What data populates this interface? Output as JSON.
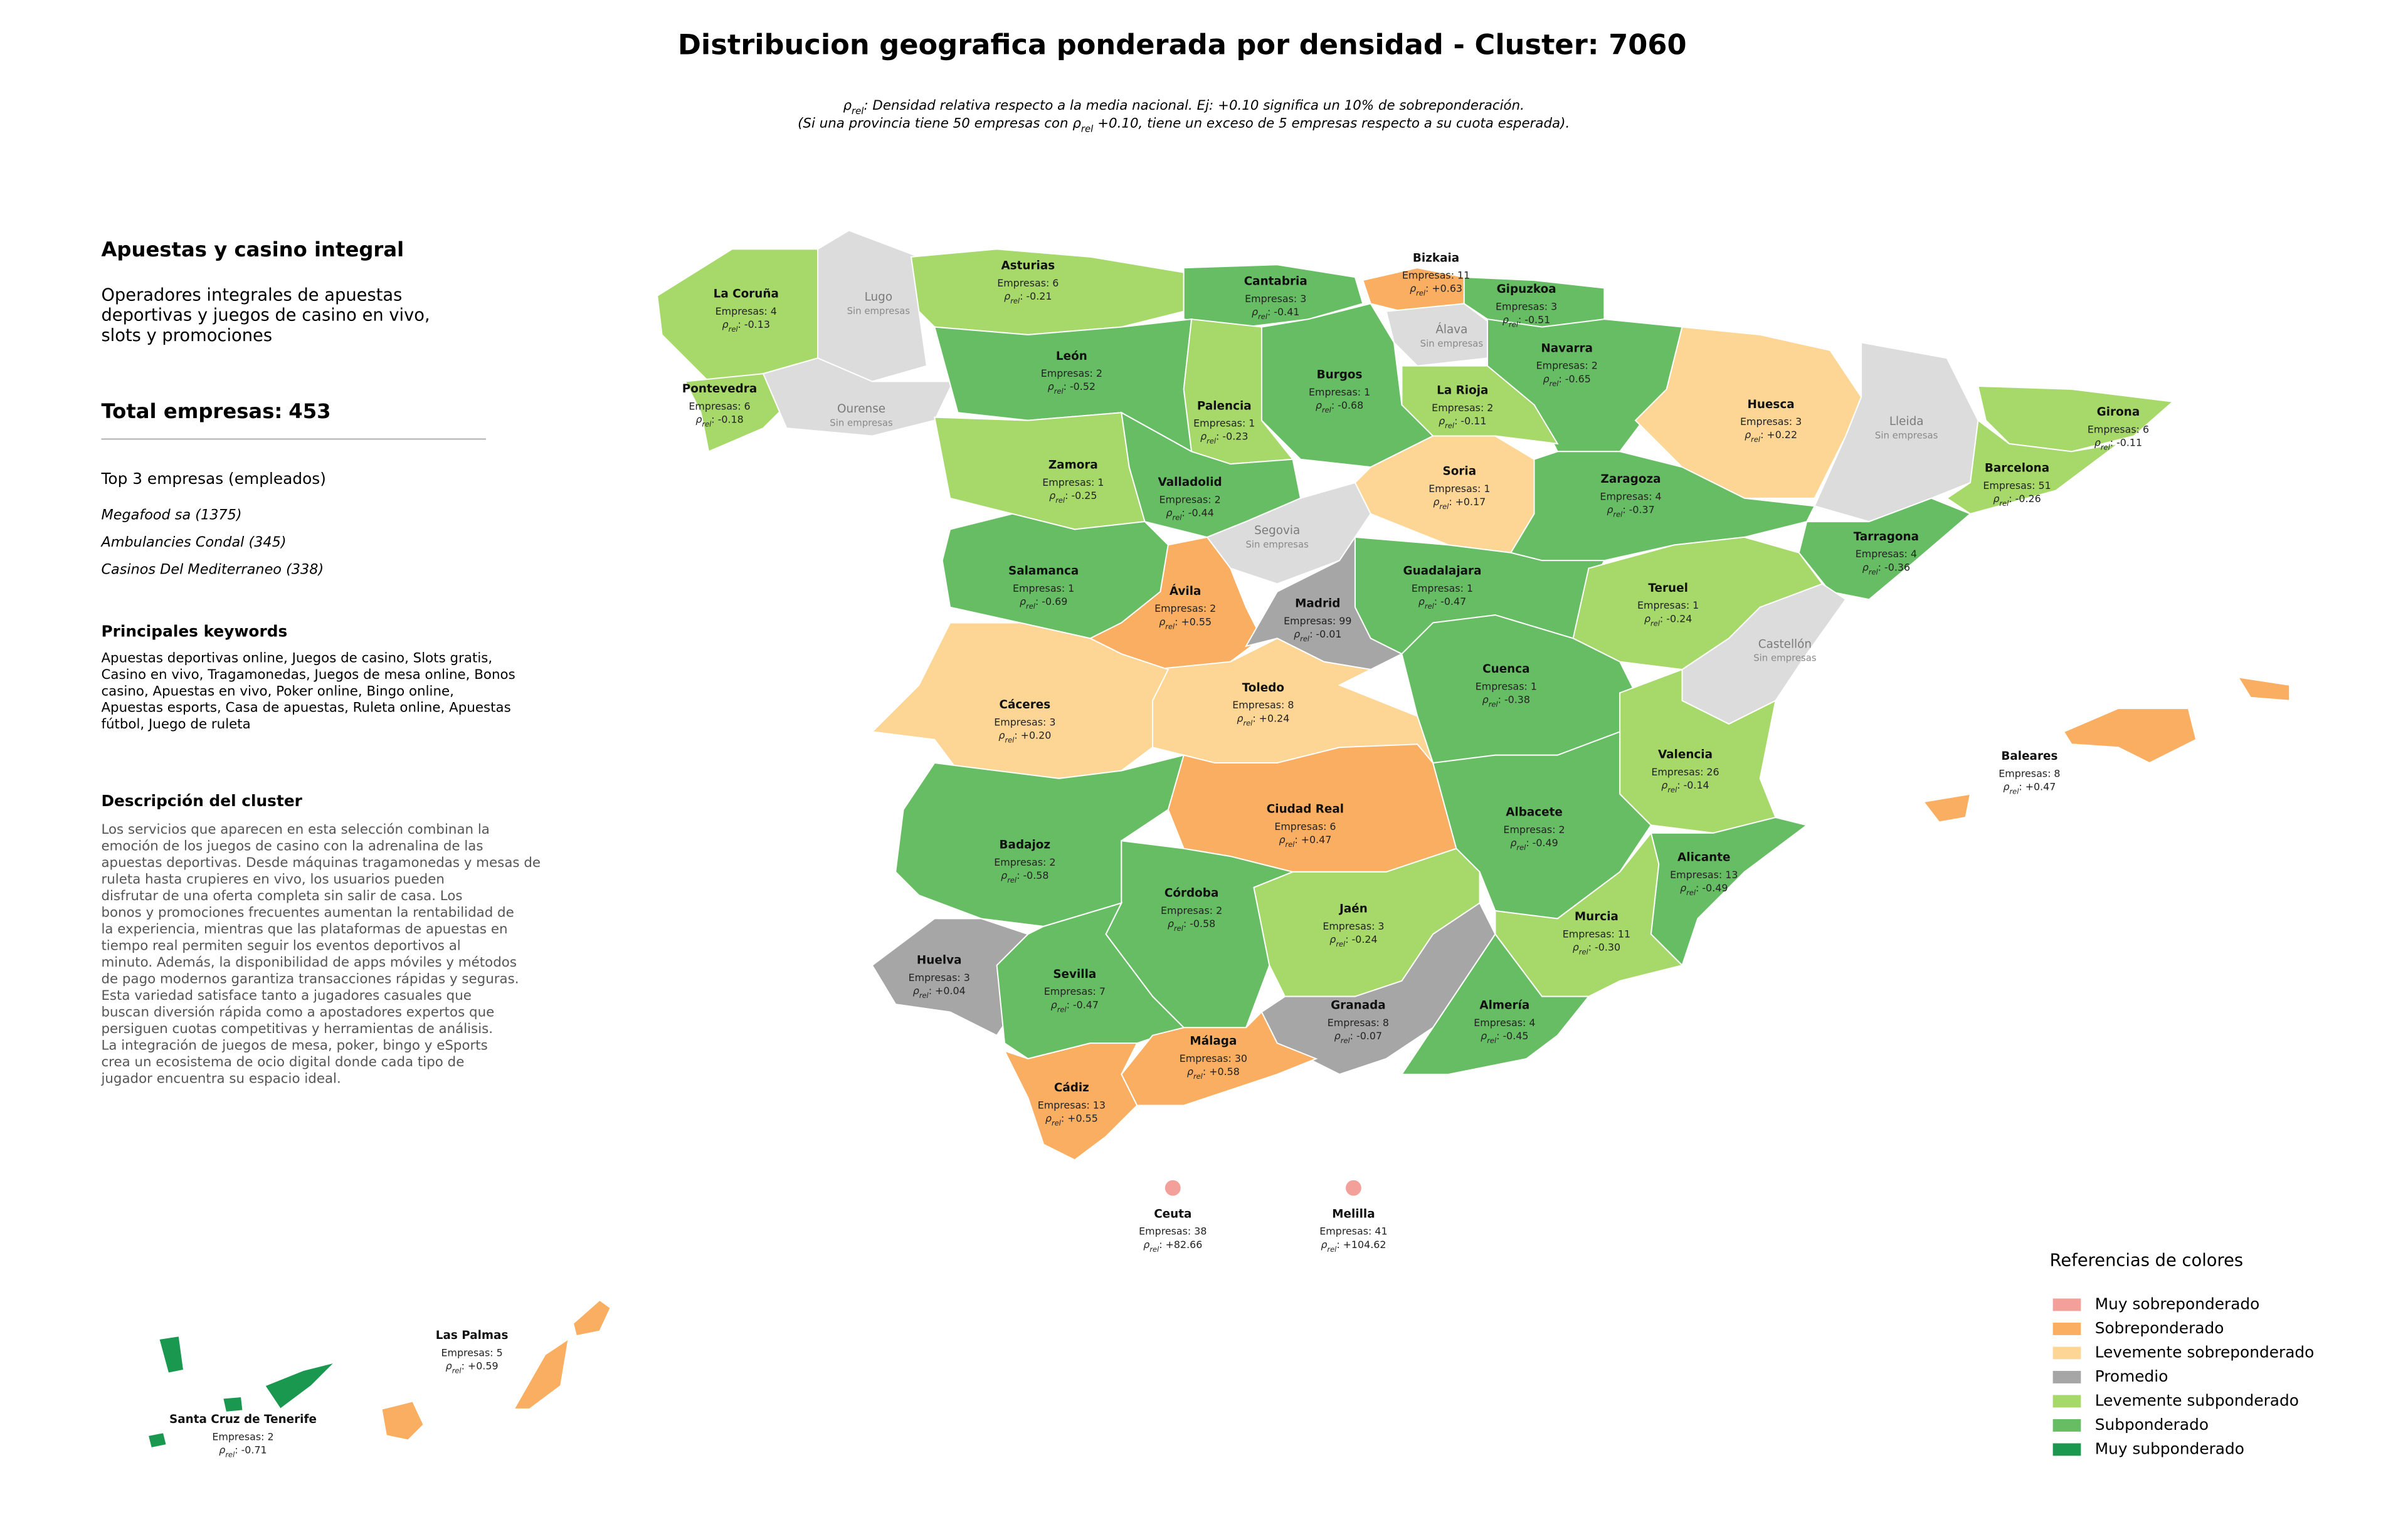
{
  "title": "Distribucion geografica ponderada por densidad - Cluster: 7060",
  "note_lines": [
    [
      "ρ",
      "rel",
      ": Densidad relativa respecto a la media nacional. Ej: +0.10 significa un 10% de sobreponderación."
    ],
    [
      "(Si una provincia tiene 50 empresas con ρ",
      "rel",
      " +0.10, tiene un exceso de 5 empresas respecto a su cuota esperada)."
    ]
  ],
  "panel": {
    "cluster_name": "Apuestas y casino integral",
    "cluster_summary": [
      "Operadores integrales de apuestas",
      "deportivas y juegos de casino en vivo,",
      "slots y promociones"
    ],
    "total_label": "Total empresas:",
    "total": 453,
    "top_title": "Top 3 empresas (empleados)",
    "top_companies": [
      "Megafood sa (1375)",
      "Ambulancies Condal (345)",
      "Casinos Del Mediterraneo (338)"
    ],
    "keywords_title": "Principales keywords",
    "keywords_lines": [
      "Apuestas deportivas online, Juegos de casino, Slots gratis,",
      "Casino en vivo, Tragamonedas, Juegos de mesa online, Bonos",
      "casino, Apuestas en vivo, Poker online, Bingo online,",
      "Apuestas esports, Casa de apuestas, Ruleta online, Apuestas",
      "fútbol, Juego de ruleta"
    ],
    "description_title": "Descripción del cluster",
    "description_lines": [
      "Los servicios que aparecen en esta selección combinan la",
      "emoción de los juegos de casino con la adrenalina de las",
      "apuestas deportivas. Desde máquinas tragamonedas y mesas de",
      "ruleta hasta crupieres en vivo, los usuarios pueden",
      "disfrutar de una oferta completa sin salir de casa. Los",
      "bonos y promociones frecuentes aumentan la rentabilidad de",
      "la experiencia, mientras que las plataformas de apuestas en",
      "tiempo real permiten seguir los eventos deportivos al",
      "minuto. Además, la disponibilidad de apps móviles y métodos",
      "de pago modernos garantiza transacciones rápidas y seguras.",
      "Esta variedad satisface tanto a jugadores casuales que",
      "buscan diversión rápida como a apostadores expertos que",
      "persiguen cuotas competitivas y herramientas de análisis.",
      "La integración de juegos de mesa, poker, bingo y eSports",
      "crea un ecosistema de ocio digital donde cada tipo de",
      "jugador encuentra su espacio ideal."
    ]
  },
  "map": {
    "empresas_prefix": "Empresas:",
    "rho_symbol": "ρ",
    "rho_sub": "rel",
    "rho_sep": ":",
    "no_data_label": "Sin empresas",
    "no_data_color": "#dcdcdc",
    "legend_title": "Referencias de colores",
    "legend": [
      {
        "name": "Muy sobreponderado",
        "color": "#f4a09a"
      },
      {
        "name": "Sobreponderado",
        "color": "#f9ae62"
      },
      {
        "name": "Levemente sobreponderado",
        "color": "#fdd696"
      },
      {
        "name": "Promedio",
        "color": "#a6a6a6"
      },
      {
        "name": "Levemente subponderado",
        "color": "#a6d96a"
      },
      {
        "name": "Subponderado",
        "color": "#66bd63"
      },
      {
        "name": "Muy subponderado",
        "color": "#1a9850"
      }
    ],
    "provinces": [
      {
        "name": "La Coruña",
        "empresas": 4,
        "rho": -0.13,
        "category": 4
      },
      {
        "name": "Lugo"
      },
      {
        "name": "Pontevedra",
        "empresas": 6,
        "rho": -0.18,
        "category": 4
      },
      {
        "name": "Ourense"
      },
      {
        "name": "Asturias",
        "empresas": 6,
        "rho": -0.21,
        "category": 4
      },
      {
        "name": "Cantabria",
        "empresas": 3,
        "rho": -0.41,
        "category": 5
      },
      {
        "name": "Bizkaia",
        "empresas": 11,
        "rho": 0.63,
        "rho_label": "+0.63",
        "category": 1
      },
      {
        "name": "Gipuzkoa",
        "empresas": 3,
        "rho": -0.51,
        "category": 5
      },
      {
        "name": "Álava"
      },
      {
        "name": "Navarra",
        "empresas": 2,
        "rho": -0.65,
        "category": 5
      },
      {
        "name": "León",
        "empresas": 2,
        "rho": -0.52,
        "category": 5
      },
      {
        "name": "Burgos",
        "empresas": 1,
        "rho": -0.68,
        "category": 5
      },
      {
        "name": "La Rioja",
        "empresas": 2,
        "rho": -0.11,
        "category": 4
      },
      {
        "name": "Palencia",
        "empresas": 1,
        "rho": -0.23,
        "category": 4
      },
      {
        "name": "Huesca",
        "empresas": 3,
        "rho": 0.22,
        "rho_label": "+0.22",
        "category": 2
      },
      {
        "name": "Lleida"
      },
      {
        "name": "Girona",
        "empresas": 6,
        "rho": -0.11,
        "category": 4
      },
      {
        "name": "Zamora",
        "empresas": 1,
        "rho": -0.25,
        "category": 4
      },
      {
        "name": "Soria",
        "empresas": 1,
        "rho": 0.17,
        "rho_label": "+0.17",
        "category": 2
      },
      {
        "name": "Zaragoza",
        "empresas": 4,
        "rho": -0.37,
        "category": 5
      },
      {
        "name": "Barcelona",
        "empresas": 51,
        "rho": -0.26,
        "category": 4
      },
      {
        "name": "Valladolid",
        "empresas": 2,
        "rho": -0.44,
        "category": 5
      },
      {
        "name": "Segovia"
      },
      {
        "name": "Tarragona",
        "empresas": 4,
        "rho": -0.36,
        "category": 5
      },
      {
        "name": "Salamanca",
        "empresas": 1,
        "rho": -0.69,
        "category": 5
      },
      {
        "name": "Guadalajara",
        "empresas": 1,
        "rho": -0.47,
        "category": 5
      },
      {
        "name": "Ávila",
        "empresas": 2,
        "rho": 0.55,
        "rho_label": "+0.55",
        "category": 1
      },
      {
        "name": "Teruel",
        "empresas": 1,
        "rho": -0.24,
        "category": 4
      },
      {
        "name": "Madrid",
        "empresas": 99,
        "rho": -0.01,
        "category": 3
      },
      {
        "name": "Castellón"
      },
      {
        "name": "Cuenca",
        "empresas": 1,
        "rho": -0.38,
        "category": 5
      },
      {
        "name": "Toledo",
        "empresas": 8,
        "rho": 0.24,
        "rho_label": "+0.24",
        "category": 2
      },
      {
        "name": "Cáceres",
        "empresas": 3,
        "rho": 0.2,
        "rho_label": "+0.20",
        "category": 2
      },
      {
        "name": "Valencia",
        "empresas": 26,
        "rho": -0.14,
        "category": 4
      },
      {
        "name": "Baleares",
        "empresas": 8,
        "rho": 0.47,
        "rho_label": "+0.47",
        "category": 1
      },
      {
        "name": "Ciudad Real",
        "empresas": 6,
        "rho": 0.47,
        "rho_label": "+0.47",
        "category": 1
      },
      {
        "name": "Albacete",
        "empresas": 2,
        "rho": -0.49,
        "category": 5
      },
      {
        "name": "Badajoz",
        "empresas": 2,
        "rho": -0.58,
        "category": 5
      },
      {
        "name": "Alicante",
        "empresas": 13,
        "rho": -0.49,
        "category": 5
      },
      {
        "name": "Córdoba",
        "empresas": 2,
        "rho": -0.58,
        "category": 5
      },
      {
        "name": "Jaén",
        "empresas": 3,
        "rho": -0.24,
        "category": 4
      },
      {
        "name": "Murcia",
        "empresas": 11,
        "rho": -0.3,
        "rho_label": "-0.30",
        "category": 4
      },
      {
        "name": "Huelva",
        "empresas": 3,
        "rho": 0.04,
        "rho_label": "+0.04",
        "category": 3
      },
      {
        "name": "Sevilla",
        "empresas": 7,
        "rho": -0.47,
        "category": 5
      },
      {
        "name": "Granada",
        "empresas": 8,
        "rho": -0.07,
        "category": 3
      },
      {
        "name": "Almería",
        "empresas": 4,
        "rho": -0.45,
        "category": 5
      },
      {
        "name": "Málaga",
        "empresas": 30,
        "rho": 0.58,
        "rho_label": "+0.58",
        "category": 1
      },
      {
        "name": "Cádiz",
        "empresas": 13,
        "rho": 0.55,
        "rho_label": "+0.55",
        "category": 1
      },
      {
        "name": "Ceuta",
        "empresas": 38,
        "rho": 82.66,
        "rho_label": "+82.66",
        "category": 0
      },
      {
        "name": "Melilla",
        "empresas": 41,
        "rho": 104.62,
        "rho_label": "+104.62",
        "category": 0
      },
      {
        "name": "Las Palmas",
        "empresas": 5,
        "rho": 0.59,
        "rho_label": "+0.59",
        "category": 1
      },
      {
        "name": "Santa Cruz de Tenerife",
        "empresas": 2,
        "rho": -0.71,
        "category": 6
      }
    ]
  }
}
